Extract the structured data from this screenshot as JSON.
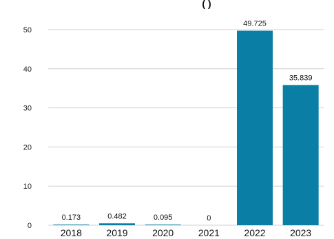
{
  "chart_data": {
    "type": "bar",
    "title_fragment": "(     )",
    "categories": [
      "2018",
      "2019",
      "2020",
      "2021",
      "2022",
      "2023"
    ],
    "values": [
      0.173,
      0.482,
      0.095,
      0,
      49.725,
      35.839
    ],
    "value_labels": [
      "0.173",
      "0.482",
      "0.095",
      "0",
      "49.725",
      "35.839"
    ],
    "ylim": [
      0,
      50
    ],
    "yticks": [
      0,
      10,
      20,
      30,
      40,
      50
    ],
    "grid": true,
    "bar_color": "#0a7ea4",
    "xlabel": "",
    "ylabel": ""
  }
}
